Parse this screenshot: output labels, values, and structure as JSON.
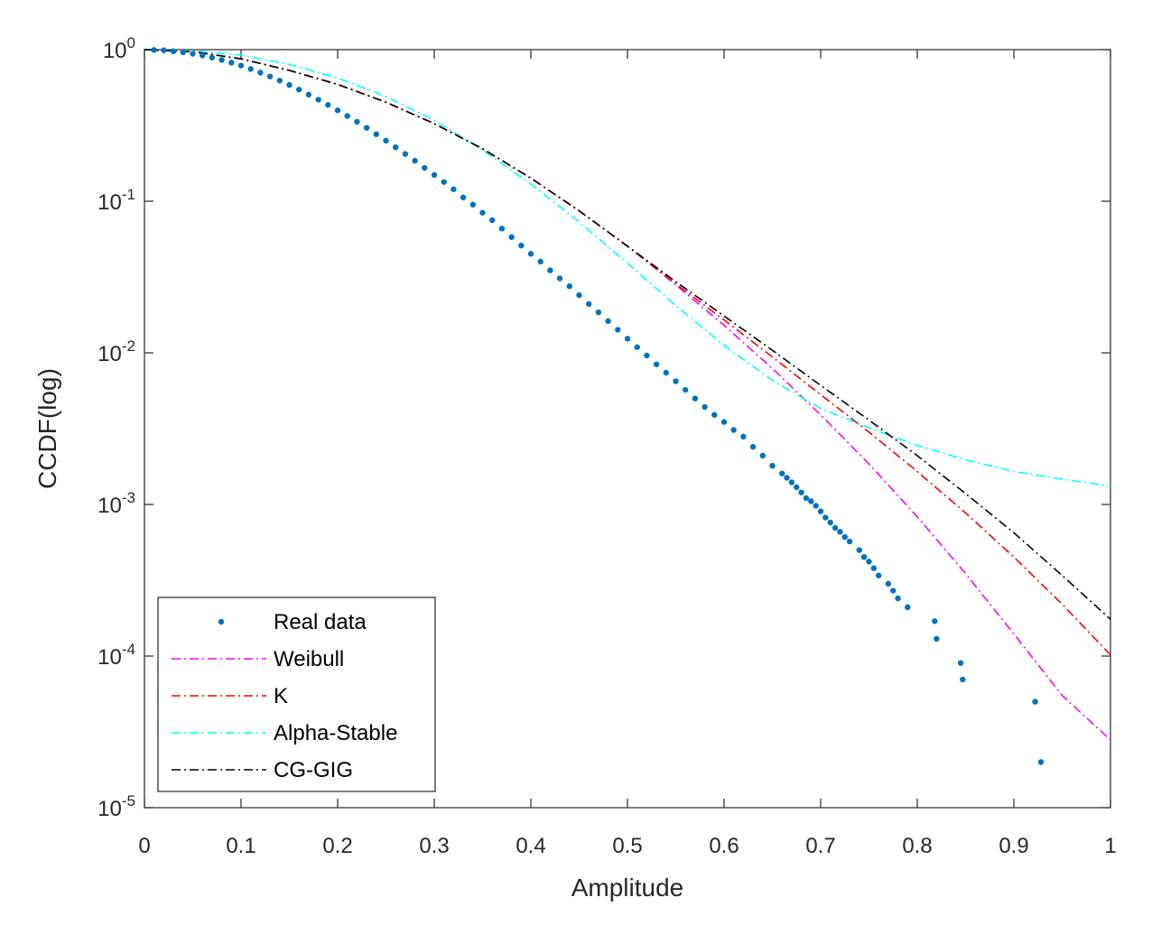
{
  "chart_data": {
    "type": "line",
    "title": "",
    "xlabel": "Amplitude",
    "ylabel": "CCDF(log)",
    "xlim": [
      0,
      1
    ],
    "ylim": [
      1e-05,
      1
    ],
    "yscale": "log",
    "grid": false,
    "legend_position": "bottom-left",
    "x_ticks": [
      0,
      0.1,
      0.2,
      0.3,
      0.4,
      0.5,
      0.6,
      0.7,
      0.8,
      0.9,
      1
    ],
    "x_tick_labels": [
      "0",
      "0.1",
      "0.2",
      "0.3",
      "0.4",
      "0.5",
      "0.6",
      "0.7",
      "0.8",
      "0.9",
      "1"
    ],
    "y_ticks": [
      {
        "value": 1,
        "base": "10",
        "exp": "0"
      },
      {
        "value": 0.1,
        "base": "10",
        "exp": "-1"
      },
      {
        "value": 0.01,
        "base": "10",
        "exp": "-2"
      },
      {
        "value": 0.001,
        "base": "10",
        "exp": "-3"
      },
      {
        "value": 0.0001,
        "base": "10",
        "exp": "-4"
      },
      {
        "value": 1e-05,
        "base": "10",
        "exp": "-5"
      }
    ],
    "series": [
      {
        "name": "Real data",
        "style": "dots",
        "color": "#0072BD",
        "x": [
          0.01,
          0.02,
          0.03,
          0.04,
          0.05,
          0.06,
          0.07,
          0.08,
          0.09,
          0.1,
          0.11,
          0.12,
          0.13,
          0.14,
          0.15,
          0.16,
          0.17,
          0.18,
          0.19,
          0.2,
          0.21,
          0.22,
          0.23,
          0.24,
          0.25,
          0.26,
          0.27,
          0.28,
          0.29,
          0.3,
          0.31,
          0.32,
          0.33,
          0.34,
          0.35,
          0.36,
          0.37,
          0.38,
          0.39,
          0.4,
          0.41,
          0.42,
          0.43,
          0.44,
          0.45,
          0.46,
          0.47,
          0.48,
          0.49,
          0.5,
          0.51,
          0.52,
          0.53,
          0.54,
          0.55,
          0.56,
          0.57,
          0.58,
          0.59,
          0.6,
          0.61,
          0.62,
          0.63,
          0.64,
          0.65,
          0.66,
          0.665,
          0.67,
          0.675,
          0.68,
          0.685,
          0.69,
          0.695,
          0.7,
          0.705,
          0.71,
          0.715,
          0.72,
          0.725,
          0.73,
          0.74,
          0.745,
          0.75,
          0.755,
          0.76,
          0.77,
          0.775,
          0.78,
          0.79,
          0.818,
          0.82,
          0.845,
          0.847,
          0.922,
          0.928
        ],
        "y": [
          0.995,
          0.99,
          0.975,
          0.96,
          0.94,
          0.915,
          0.885,
          0.855,
          0.82,
          0.785,
          0.745,
          0.705,
          0.665,
          0.625,
          0.585,
          0.545,
          0.505,
          0.468,
          0.432,
          0.398,
          0.365,
          0.334,
          0.305,
          0.277,
          0.251,
          0.227,
          0.205,
          0.185,
          0.166,
          0.149,
          0.134,
          0.12,
          0.106,
          0.095,
          0.084,
          0.075,
          0.066,
          0.058,
          0.051,
          0.045,
          0.04,
          0.035,
          0.031,
          0.0275,
          0.024,
          0.021,
          0.0185,
          0.0162,
          0.0142,
          0.0124,
          0.0109,
          0.0096,
          0.0084,
          0.0074,
          0.0065,
          0.0057,
          0.005,
          0.0044,
          0.0039,
          0.0035,
          0.0031,
          0.0028,
          0.0024,
          0.0021,
          0.0018,
          0.0016,
          0.0015,
          0.0014,
          0.0013,
          0.0012,
          0.0011,
          0.00105,
          0.00098,
          0.0009,
          0.00082,
          0.00076,
          0.0007,
          0.00066,
          0.00061,
          0.00057,
          0.0005,
          0.00045,
          0.00042,
          0.00038,
          0.00034,
          0.0003,
          0.00027,
          0.00024,
          0.00021,
          0.00017,
          0.00013,
          9e-05,
          7e-05,
          5e-05,
          2e-05
        ]
      },
      {
        "name": "Weibull",
        "style": "dashdot",
        "color": "#FF00FF",
        "x": [
          0,
          0.05,
          0.1,
          0.15,
          0.2,
          0.25,
          0.3,
          0.35,
          0.4,
          0.45,
          0.5,
          0.55,
          0.6,
          0.65,
          0.7,
          0.75,
          0.8,
          0.85,
          0.9,
          0.95,
          1
        ],
        "y": [
          1,
          0.97,
          0.87,
          0.73,
          0.59,
          0.45,
          0.325,
          0.222,
          0.142,
          0.0865,
          0.0505,
          0.0281,
          0.0152,
          0.0079,
          0.0039,
          0.00185,
          0.00083,
          0.00035,
          0.00014,
          5.5e-05,
          2.8e-05
        ]
      },
      {
        "name": "K",
        "style": "dashdot",
        "color": "#FF0000",
        "x": [
          0,
          0.05,
          0.1,
          0.15,
          0.2,
          0.25,
          0.3,
          0.35,
          0.4,
          0.45,
          0.5,
          0.55,
          0.6,
          0.65,
          0.7,
          0.75,
          0.8,
          0.85,
          0.9,
          0.95,
          1
        ],
        "y": [
          1,
          0.97,
          0.87,
          0.73,
          0.59,
          0.45,
          0.325,
          0.222,
          0.142,
          0.0865,
          0.0505,
          0.0285,
          0.0165,
          0.0094,
          0.0053,
          0.003,
          0.00165,
          0.00088,
          0.00045,
          0.00022,
          0.000102
        ]
      },
      {
        "name": "Alpha-Stable",
        "style": "dashdot",
        "color": "#00FFFF",
        "x": [
          0,
          0.05,
          0.1,
          0.15,
          0.2,
          0.25,
          0.3,
          0.35,
          0.4,
          0.45,
          0.5,
          0.55,
          0.6,
          0.65,
          0.7,
          0.75,
          0.8,
          0.85,
          0.9,
          0.95,
          1
        ],
        "y": [
          1,
          0.985,
          0.92,
          0.8,
          0.65,
          0.49,
          0.342,
          0.218,
          0.13,
          0.073,
          0.039,
          0.0205,
          0.0112,
          0.0066,
          0.0043,
          0.0032,
          0.00245,
          0.00197,
          0.00165,
          0.00147,
          0.00132
        ]
      },
      {
        "name": "CG-GIG",
        "style": "dashdot",
        "color": "#000000",
        "x": [
          0,
          0.05,
          0.1,
          0.15,
          0.2,
          0.25,
          0.3,
          0.35,
          0.4,
          0.45,
          0.5,
          0.55,
          0.6,
          0.65,
          0.7,
          0.75,
          0.8,
          0.85,
          0.9,
          0.95,
          1
        ],
        "y": [
          1,
          0.97,
          0.87,
          0.73,
          0.59,
          0.45,
          0.325,
          0.222,
          0.142,
          0.0865,
          0.0505,
          0.0295,
          0.0175,
          0.0104,
          0.0061,
          0.0036,
          0.0021,
          0.00118,
          0.00065,
          0.00034,
          0.000175
        ]
      }
    ]
  }
}
